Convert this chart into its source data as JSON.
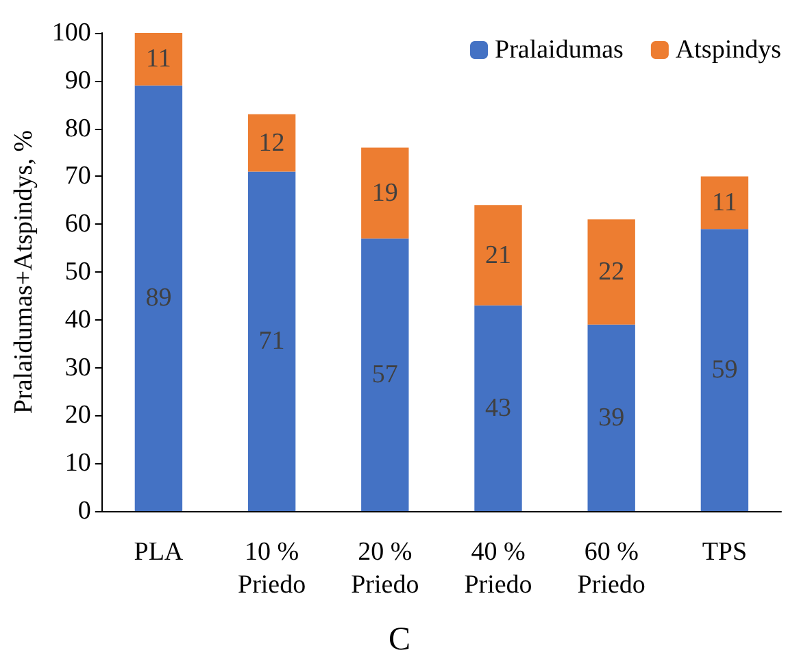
{
  "chart_data": {
    "type": "bar",
    "stacked": true,
    "ylabel": "Pralaidumas+Atspindys, %",
    "categories": [
      "PLA",
      "10 %\nPriedo",
      "20 %\nPriedo",
      "40 %\nPriedo",
      "60 %\nPriedo",
      "TPS"
    ],
    "series": [
      {
        "name": "Pralaidumas",
        "color": "#4472c4",
        "values": [
          89,
          71,
          57,
          43,
          39,
          59
        ]
      },
      {
        "name": "Atspindys",
        "color": "#ed7d31",
        "values": [
          11,
          12,
          19,
          21,
          22,
          11
        ]
      }
    ],
    "ylim": [
      0,
      100
    ],
    "yticks": [
      0,
      10,
      20,
      30,
      40,
      50,
      60,
      70,
      80,
      90,
      100
    ],
    "grid": false,
    "legend": "top right",
    "data_labels": true,
    "annotations": [
      "C"
    ]
  }
}
